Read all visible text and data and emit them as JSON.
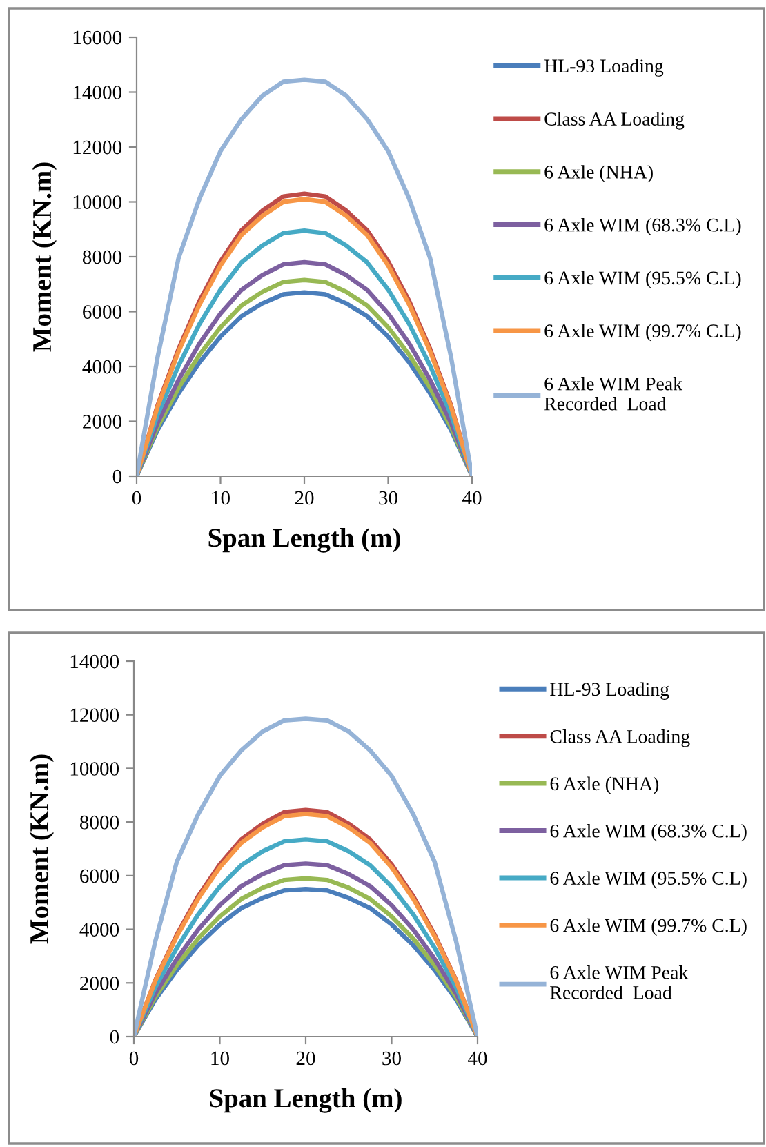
{
  "chart_data": [
    {
      "type": "line",
      "xlabel": "Span Length (m)",
      "ylabel": "Moment (KN.m)",
      "x": [
        0,
        2.5,
        5,
        7.5,
        10,
        12.5,
        15,
        17.5,
        20,
        22.5,
        25,
        27.5,
        30,
        32.5,
        35,
        37.5,
        40
      ],
      "xlim": [
        0,
        40
      ],
      "xticks": [
        0,
        10,
        20,
        30,
        40
      ],
      "ylim": [
        0,
        16000
      ],
      "yticks": [
        0,
        2000,
        4000,
        6000,
        8000,
        10000,
        12000,
        14000,
        16000
      ],
      "grid": false,
      "legend": "right",
      "marker": "none",
      "line_style": "solid",
      "series": [
        {
          "name": "HL-93 Loading",
          "color": "#4a7ebb",
          "values": [
            0,
            1680,
            3020,
            4150,
            5090,
            5830,
            6300,
            6630,
            6700,
            6630,
            6300,
            5830,
            5090,
            4150,
            3020,
            1680,
            0
          ]
        },
        {
          "name": "Class AA Loading",
          "color": "#be4b48",
          "values": [
            0,
            2580,
            4640,
            6390,
            7830,
            8960,
            9680,
            10200,
            10300,
            10200,
            9680,
            8960,
            7830,
            6390,
            4640,
            2580,
            0
          ]
        },
        {
          "name": "6 Axle (NHA)",
          "color": "#98b954",
          "values": [
            0,
            1790,
            3220,
            4430,
            5430,
            6220,
            6720,
            7080,
            7150,
            7080,
            6720,
            6220,
            5430,
            4430,
            3220,
            1790,
            0
          ]
        },
        {
          "name": "6 Axle WIM (68.3% C.L)",
          "color": "#7d60a0",
          "values": [
            0,
            1950,
            3510,
            4840,
            5930,
            6790,
            7330,
            7720,
            7800,
            7720,
            7330,
            6790,
            5930,
            4840,
            3510,
            1950,
            0
          ]
        },
        {
          "name": "6 Axle WIM (95.5% C.L)",
          "color": "#46aac5",
          "values": [
            0,
            2240,
            4030,
            5550,
            6800,
            7790,
            8410,
            8860,
            8950,
            8860,
            8410,
            7790,
            6800,
            5550,
            4030,
            2240,
            0
          ]
        },
        {
          "name": "6 Axle WIM (99.7% C.L)",
          "color": "#f79646",
          "values": [
            0,
            2530,
            4550,
            6260,
            7680,
            8790,
            9490,
            10000,
            10100,
            10000,
            9490,
            8790,
            7680,
            6260,
            4550,
            2530,
            0
          ]
        },
        {
          "name": "6 Axle WIM Peak\nRecorded  Load",
          "color": "#95b3d7",
          "values": [
            0,
            4340,
            7950,
            10120,
            11850,
            13010,
            13870,
            14380,
            14450,
            14380,
            13870,
            13010,
            11850,
            10120,
            7950,
            4340,
            0
          ]
        }
      ]
    },
    {
      "type": "line",
      "xlabel": "Span Length (m)",
      "ylabel": "Moment (KN.m)",
      "x": [
        0,
        2.5,
        5,
        7.5,
        10,
        12.5,
        15,
        17.5,
        20,
        22.5,
        25,
        27.5,
        30,
        32.5,
        35,
        37.5,
        40
      ],
      "xlim": [
        0,
        40
      ],
      "xticks": [
        0,
        10,
        20,
        30,
        40
      ],
      "ylim": [
        0,
        14000
      ],
      "yticks": [
        0,
        2000,
        4000,
        6000,
        8000,
        10000,
        12000,
        14000
      ],
      "grid": false,
      "legend": "right",
      "marker": "none",
      "line_style": "solid",
      "series": [
        {
          "name": "HL-93 Loading",
          "color": "#4a7ebb",
          "values": [
            0,
            1380,
            2480,
            3410,
            4180,
            4790,
            5170,
            5450,
            5500,
            5450,
            5170,
            4790,
            4180,
            3410,
            2480,
            1380,
            0
          ]
        },
        {
          "name": "Class AA Loading",
          "color": "#be4b48",
          "values": [
            0,
            2110,
            3800,
            5240,
            6420,
            7350,
            7940,
            8370,
            8450,
            8370,
            7940,
            7350,
            6420,
            5240,
            3800,
            2110,
            0
          ]
        },
        {
          "name": "6 Axle (NHA)",
          "color": "#98b954",
          "values": [
            0,
            1480,
            2660,
            3660,
            4480,
            5130,
            5550,
            5840,
            5900,
            5840,
            5550,
            5130,
            4480,
            3660,
            2660,
            1480,
            0
          ]
        },
        {
          "name": "6 Axle WIM (68.3% C.L)",
          "color": "#7d60a0",
          "values": [
            0,
            1610,
            2900,
            4000,
            4900,
            5610,
            6060,
            6390,
            6450,
            6390,
            6060,
            5610,
            4900,
            4000,
            2900,
            1610,
            0
          ]
        },
        {
          "name": "6 Axle WIM (95.5% C.L)",
          "color": "#46aac5",
          "values": [
            0,
            1840,
            3310,
            4560,
            5590,
            6390,
            6910,
            7280,
            7350,
            7280,
            6910,
            6390,
            5590,
            4560,
            3310,
            1840,
            0
          ]
        },
        {
          "name": "6 Axle WIM (99.7% C.L)",
          "color": "#f79646",
          "values": [
            0,
            2080,
            3740,
            5150,
            6310,
            7220,
            7800,
            8220,
            8300,
            8220,
            7800,
            7220,
            6310,
            5150,
            3740,
            2080,
            0
          ]
        },
        {
          "name": "6 Axle WIM Peak\nRecorded  Load",
          "color": "#95b3d7",
          "values": [
            0,
            3560,
            6520,
            8300,
            9720,
            10670,
            11380,
            11790,
            11850,
            11790,
            11380,
            10670,
            9720,
            8300,
            6520,
            3560,
            0
          ]
        }
      ]
    }
  ]
}
